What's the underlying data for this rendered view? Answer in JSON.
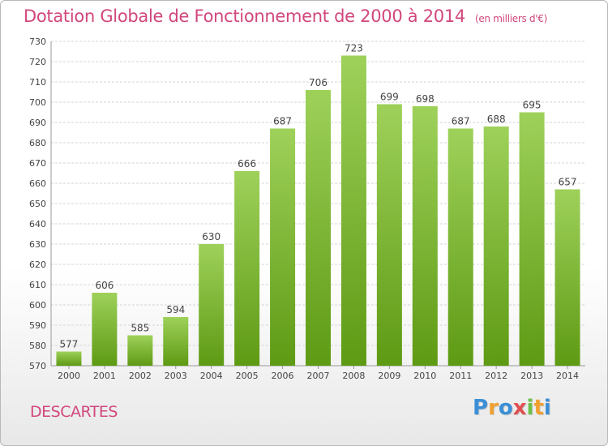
{
  "title": "Dotation Globale de Fonctionnement de 2000 à 2014",
  "subtitle": "(en milliers d'€)",
  "commune": "DESCARTES",
  "logo": {
    "letters": [
      "P",
      "r",
      "o",
      "x",
      "i",
      "t",
      "i"
    ],
    "colors": [
      "#3a8fd6",
      "#f0a030",
      "#3a8fd6",
      "#e05050",
      "#6cc04a",
      "#f0a030",
      "#3a8fd6"
    ]
  },
  "colors": {
    "bar_top": "#9ed15a",
    "bar_bottom": "#5e9a14",
    "title": "#d1477d"
  },
  "chart_data": {
    "type": "bar",
    "categories": [
      "2000",
      "2001",
      "2002",
      "2003",
      "2004",
      "2005",
      "2006",
      "2007",
      "2008",
      "2009",
      "2010",
      "2011",
      "2012",
      "2013",
      "2014"
    ],
    "values": [
      577,
      606,
      585,
      594,
      630,
      666,
      687,
      706,
      723,
      699,
      698,
      687,
      688,
      695,
      657
    ],
    "ylim": [
      570,
      730
    ],
    "yticks": [
      570,
      580,
      590,
      600,
      610,
      620,
      630,
      640,
      650,
      660,
      670,
      680,
      690,
      700,
      710,
      720,
      730
    ],
    "grid": true,
    "data_labels": true
  }
}
